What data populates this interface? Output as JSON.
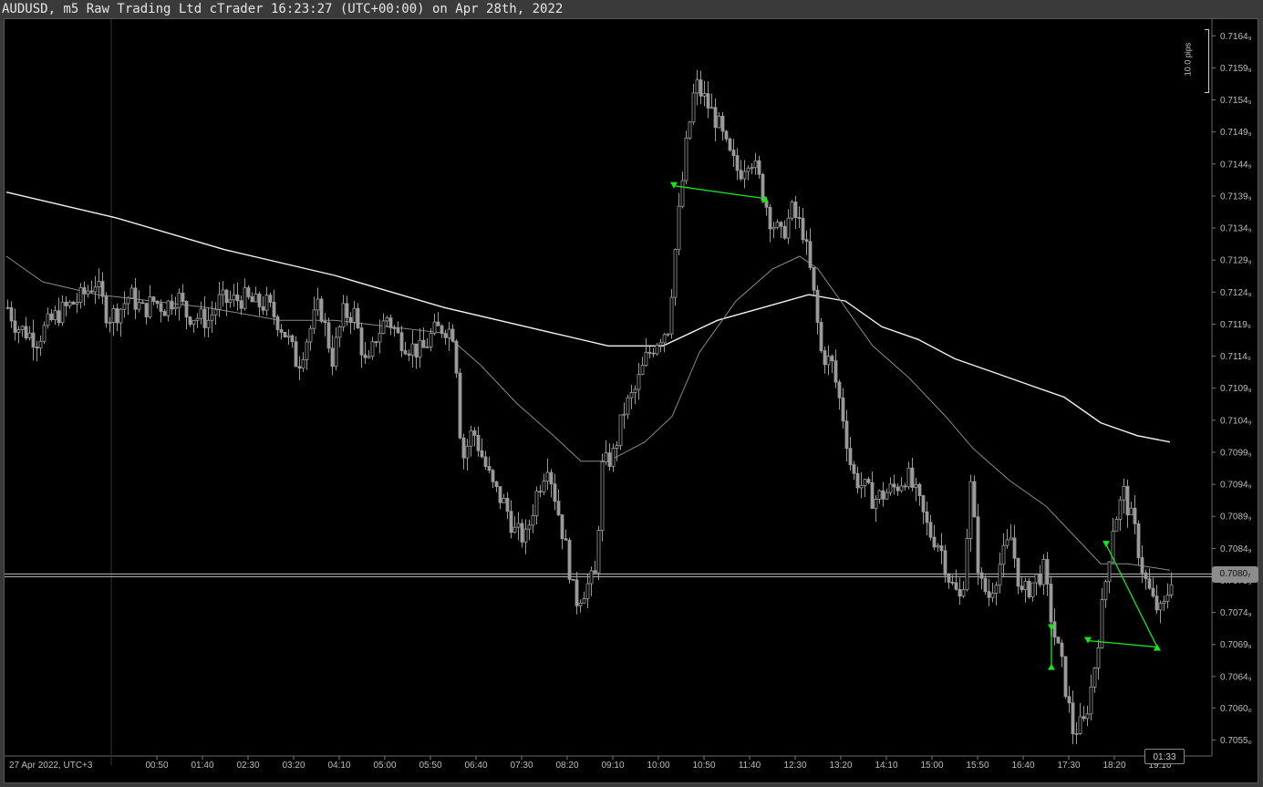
{
  "window": {
    "title": "AUDUSD, m5 Raw Trading Ltd cTrader 16:23:27 (UTC+00:00) on Apr 28th, 2022"
  },
  "chart_data": {
    "type": "candlestick",
    "symbol": "AUDUSD",
    "timeframe": "m5",
    "ylim": [
      0.70525,
      0.71675
    ],
    "price_ticks": [
      "0.7164₉",
      "0.7159₉",
      "0.7154₉",
      "0.7149₉",
      "0.7144₉",
      "0.7139₉",
      "0.7134₉",
      "0.7129₉",
      "0.7124₉",
      "0.7119₉",
      "0.7114₉",
      "0.7109₉",
      "0.7104₉",
      "0.7099₉",
      "0.7094₉",
      "0.7089₉",
      "0.7084₉",
      "0.7079₉",
      "0.7074₉",
      "0.7069₉",
      "0.7064₉",
      "0.7060₀",
      "0.7055₀"
    ],
    "price_tick_values": [
      0.71649,
      0.71599,
      0.71549,
      0.71499,
      0.71449,
      0.71399,
      0.71349,
      0.71299,
      0.71249,
      0.71199,
      0.71149,
      0.71099,
      0.71049,
      0.70999,
      0.70949,
      0.70899,
      0.70849,
      0.70799,
      0.70749,
      0.70699,
      0.70649,
      0.706,
      0.7055
    ],
    "time_start_label": "27 Apr 2022, UTC+3",
    "time_ticks": [
      "00:50",
      "01:40",
      "02:30",
      "03:20",
      "04:10",
      "05:00",
      "05:50",
      "06:40",
      "07:30",
      "08:20",
      "09:10",
      "10:00",
      "10:50",
      "11:40",
      "12:30",
      "13:20",
      "14:10",
      "15:00",
      "15:50",
      "16:40",
      "17:30",
      "18:20",
      "19:10"
    ],
    "current_price": "0.7080₇",
    "current_price_value": 0.70807,
    "bar_timer": "01:33",
    "pips_scale_label": "10.0 pips",
    "close_path": [
      [
        0,
        0.71225
      ],
      [
        10,
        0.71195
      ],
      [
        22,
        0.71185
      ],
      [
        32,
        0.71175
      ],
      [
        42,
        0.71195
      ],
      [
        55,
        0.71215
      ],
      [
        65,
        0.71225
      ],
      [
        80,
        0.7124
      ],
      [
        96,
        0.71265
      ],
      [
        110,
        0.7121
      ],
      [
        122,
        0.7122
      ],
      [
        134,
        0.71245
      ],
      [
        148,
        0.7122
      ],
      [
        160,
        0.71235
      ],
      [
        172,
        0.71225
      ],
      [
        186,
        0.71245
      ],
      [
        196,
        0.71215
      ],
      [
        208,
        0.7121
      ],
      [
        220,
        0.71205
      ],
      [
        232,
        0.71235
      ],
      [
        246,
        0.71235
      ],
      [
        258,
        0.7124
      ],
      [
        272,
        0.7123
      ],
      [
        284,
        0.7123
      ],
      [
        296,
        0.71205
      ],
      [
        306,
        0.7118
      ],
      [
        318,
        0.71135
      ],
      [
        330,
        0.71185
      ],
      [
        342,
        0.7123
      ],
      [
        356,
        0.71145
      ],
      [
        368,
        0.71215
      ],
      [
        380,
        0.71215
      ],
      [
        394,
        0.71125
      ],
      [
        404,
        0.7118
      ],
      [
        416,
        0.7121
      ],
      [
        428,
        0.7118
      ],
      [
        440,
        0.71165
      ],
      [
        454,
        0.71155
      ],
      [
        466,
        0.71185
      ],
      [
        478,
        0.71195
      ],
      [
        490,
        0.71185
      ],
      [
        498,
        0.70985
      ],
      [
        510,
        0.71035
      ],
      [
        522,
        0.70985
      ],
      [
        532,
        0.70945
      ],
      [
        546,
        0.70915
      ],
      [
        556,
        0.70875
      ],
      [
        568,
        0.70865
      ],
      [
        580,
        0.70935
      ],
      [
        592,
        0.70985
      ],
      [
        604,
        0.70905
      ],
      [
        614,
        0.70835
      ],
      [
        622,
        0.70765
      ],
      [
        632,
        0.70785
      ],
      [
        644,
        0.70805
      ],
      [
        652,
        0.70975
      ],
      [
        664,
        0.70995
      ],
      [
        676,
        0.71065
      ],
      [
        688,
        0.71095
      ],
      [
        700,
        0.71145
      ],
      [
        712,
        0.71175
      ],
      [
        724,
        0.71195
      ],
      [
        734,
        0.71345
      ],
      [
        744,
        0.71475
      ],
      [
        754,
        0.71575
      ],
      [
        766,
        0.71545
      ],
      [
        778,
        0.71515
      ],
      [
        790,
        0.71465
      ],
      [
        802,
        0.71435
      ],
      [
        814,
        0.71465
      ],
      [
        826,
        0.71415
      ],
      [
        836,
        0.71365
      ],
      [
        848,
        0.71335
      ],
      [
        860,
        0.71375
      ],
      [
        872,
        0.71345
      ],
      [
        882,
        0.71265
      ],
      [
        892,
        0.71155
      ],
      [
        904,
        0.71135
      ],
      [
        916,
        0.71055
      ],
      [
        926,
        0.70965
      ],
      [
        938,
        0.70945
      ],
      [
        950,
        0.70925
      ],
      [
        962,
        0.70935
      ],
      [
        974,
        0.70945
      ],
      [
        986,
        0.70965
      ],
      [
        998,
        0.70925
      ],
      [
        1010,
        0.70875
      ],
      [
        1022,
        0.70855
      ],
      [
        1034,
        0.70795
      ],
      [
        1046,
        0.70765
      ],
      [
        1056,
        0.70945
      ],
      [
        1066,
        0.70795
      ],
      [
        1076,
        0.70775
      ],
      [
        1088,
        0.70825
      ],
      [
        1100,
        0.70865
      ],
      [
        1112,
        0.70775
      ],
      [
        1124,
        0.70795
      ],
      [
        1136,
        0.70815
      ],
      [
        1146,
        0.70725
      ],
      [
        1156,
        0.70665
      ],
      [
        1168,
        0.70565
      ],
      [
        1180,
        0.70575
      ],
      [
        1190,
        0.70645
      ],
      [
        1200,
        0.70755
      ],
      [
        1212,
        0.70885
      ],
      [
        1224,
        0.70935
      ],
      [
        1236,
        0.70875
      ],
      [
        1246,
        0.70805
      ],
      [
        1256,
        0.70765
      ],
      [
        1266,
        0.70745
      ],
      [
        1276,
        0.70805
      ]
    ],
    "series": [
      {
        "name": "",
        "points": [
          [
            0,
            0.71405
          ],
          [
            120,
            0.71365
          ],
          [
            240,
            0.71315
          ],
          [
            360,
            0.71275
          ],
          [
            480,
            0.71225
          ],
          [
            600,
            0.71185
          ],
          [
            660,
            0.71165
          ],
          [
            720,
            0.71165
          ],
          [
            780,
            0.71205
          ],
          [
            830,
            0.71225
          ],
          [
            880,
            0.71245
          ],
          [
            920,
            0.71235
          ],
          [
            960,
            0.71195
          ],
          [
            1000,
            0.71175
          ],
          [
            1040,
            0.71145
          ],
          [
            1080,
            0.71125
          ],
          [
            1120,
            0.71105
          ],
          [
            1160,
            0.71085
          ],
          [
            1200,
            0.71045
          ],
          [
            1240,
            0.71025
          ],
          [
            1276,
            0.71015
          ]
        ]
      },
      {
        "name": "",
        "points": [
          [
            0,
            0.71305
          ],
          [
            40,
            0.71265
          ],
          [
            100,
            0.71245
          ],
          [
            160,
            0.71235
          ],
          [
            220,
            0.71225
          ],
          [
            300,
            0.71205
          ],
          [
            360,
            0.71205
          ],
          [
            420,
            0.71195
          ],
          [
            480,
            0.71185
          ],
          [
            520,
            0.71135
          ],
          [
            560,
            0.71075
          ],
          [
            600,
            0.71025
          ],
          [
            630,
            0.70985
          ],
          [
            660,
            0.70985
          ],
          [
            700,
            0.71015
          ],
          [
            730,
            0.71055
          ],
          [
            760,
            0.71155
          ],
          [
            800,
            0.71235
          ],
          [
            840,
            0.71285
          ],
          [
            870,
            0.71305
          ],
          [
            890,
            0.71285
          ],
          [
            920,
            0.71225
          ],
          [
            950,
            0.71165
          ],
          [
            990,
            0.71115
          ],
          [
            1030,
            0.71055
          ],
          [
            1060,
            0.71005
          ],
          [
            1100,
            0.70955
          ],
          [
            1140,
            0.70915
          ],
          [
            1180,
            0.70855
          ],
          [
            1200,
            0.70825
          ],
          [
            1230,
            0.70825
          ],
          [
            1276,
            0.70815
          ]
        ]
      }
    ],
    "zigzag_segments": [
      {
        "from": [
          732,
          0.71415
        ],
        "to": [
          832,
          0.71395
        ]
      },
      {
        "from": [
          1146,
          0.70725
        ],
        "to": [
          1146,
          0.70665
        ]
      },
      {
        "from": [
          1186,
          0.70705
        ],
        "to": [
          1262,
          0.70695
        ]
      },
      {
        "from": [
          1206,
          0.70855
        ],
        "to": [
          1262,
          0.70695
        ]
      }
    ],
    "grid": false,
    "colors": {
      "background": "#000000",
      "candles": "#9a9a9a",
      "ma_slow": "#f2f2f2",
      "ma_fast": "#8a8a8a",
      "zigzag": "#19e619",
      "price_line": "#bbbbbb",
      "axis_text": "#bdbdbd"
    }
  }
}
